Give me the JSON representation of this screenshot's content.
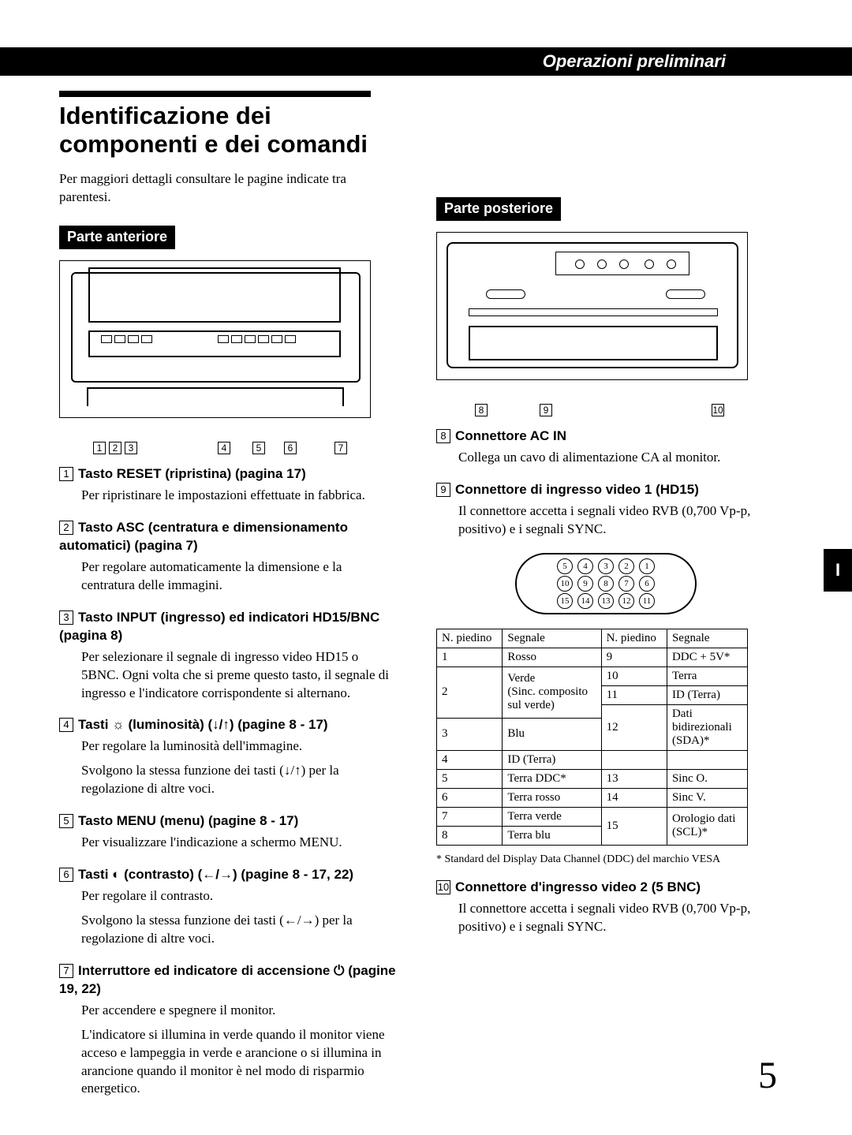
{
  "header": {
    "section": "Operazioni preliminari"
  },
  "title": "Identificazione dei componenti e dei comandi",
  "intro": "Per maggiori dettagli consultare le pagine indicate tra parentesi.",
  "front_label": "Parte anteriore",
  "back_label": "Parte posteriore",
  "side_tab": "I",
  "page_number": "5",
  "front_callouts": [
    "1",
    "2",
    "3",
    "4",
    "5",
    "6",
    "7"
  ],
  "back_callouts": [
    "8",
    "9",
    "10"
  ],
  "front_items": [
    {
      "num": "1",
      "title": "Tasto RESET (ripristina) (pagina 17)",
      "paras": [
        "Per ripristinare le impostazioni effettuate in fabbrica."
      ]
    },
    {
      "num": "2",
      "title": "Tasto ASC (centratura e dimensionamento automatici) (pagina 7)",
      "paras": [
        "Per regolare automaticamente la dimensione e la centratura delle immagini."
      ]
    },
    {
      "num": "3",
      "title": "Tasto INPUT (ingresso) ed indicatori HD15/BNC (pagina 8)",
      "paras": [
        "Per selezionare il segnale di ingresso video HD15 o 5BNC. Ogni volta che si preme questo tasto, il segnale di ingresso e l'indicatore corrispondente si alternano."
      ]
    },
    {
      "num": "4",
      "title": "Tasti ☼ (luminosità) (↓/↑) (pagine 8 - 17)",
      "paras": [
        "Per regolare la luminosità dell'immagine.",
        "Svolgono la stessa funzione dei tasti (↓/↑) per la regolazione di altre voci."
      ]
    },
    {
      "num": "5",
      "title": "Tasto MENU (menu) (pagine 8 - 17)",
      "paras": [
        "Per visualizzare l'indicazione a schermo MENU."
      ]
    },
    {
      "num": "6",
      "title": "Tasti ◐ (contrasto) (←/→) (pagine 8 - 17, 22)",
      "paras": [
        "Per regolare il contrasto.",
        "Svolgono la stessa funzione dei tasti (←/→) per la regolazione di altre voci."
      ]
    },
    {
      "num": "7",
      "title": "Interruttore ed indicatore di accensione ⏻ (pagine 19, 22)",
      "paras": [
        "Per accendere e spegnere il monitor.",
        "L'indicatore si illumina in verde quando il monitor viene acceso e lampeggia in verde e arancione o si illumina in arancione quando il monitor è nel modo di risparmio energetico."
      ]
    }
  ],
  "back_items_top": [
    {
      "num": "8",
      "title": "Connettore AC IN",
      "paras": [
        "Collega un cavo di alimentazione CA al monitor."
      ]
    },
    {
      "num": "9",
      "title": "Connettore di ingresso video 1 (HD15)",
      "paras": [
        "Il connettore accetta i segnali video RVB (0,700 Vp-p, positivo) e i segnali SYNC."
      ]
    }
  ],
  "back_items_bottom": [
    {
      "num": "10",
      "title": "Connettore d'ingresso video 2 (5 BNC)",
      "paras": [
        "Il connettore accetta i segnali video RVB (0,700 Vp-p, positivo) e i segnali SYNC."
      ]
    }
  ],
  "pin_rows": [
    [
      "5",
      "4",
      "3",
      "2",
      "1"
    ],
    [
      "10",
      "9",
      "8",
      "7",
      "6"
    ],
    [
      "15",
      "14",
      "13",
      "12",
      "11"
    ]
  ],
  "pin_table": {
    "headers": [
      "N. piedino",
      "Segnale",
      "N. piedino",
      "Segnale"
    ],
    "left": [
      {
        "n": "1",
        "s": "Rosso"
      },
      {
        "n": "2",
        "s": "Verde\n(Sinc. composito sul verde)",
        "rowspan": 3
      },
      {
        "n": "3",
        "s": "Blu"
      },
      {
        "n": "4",
        "s": "ID (Terra)"
      },
      {
        "n": "5",
        "s": "Terra DDC*"
      },
      {
        "n": "6",
        "s": "Terra rosso"
      },
      {
        "n": "7",
        "s": "Terra verde"
      },
      {
        "n": "8",
        "s": "Terra blu"
      }
    ],
    "right": [
      {
        "n": "9",
        "s": "DDC + 5V*"
      },
      {
        "n": "10",
        "s": "Terra"
      },
      {
        "n": "11",
        "s": "ID (Terra)"
      },
      {
        "n": "12",
        "s": "Dati bidirezionali (SDA)*",
        "rowspan": 2
      },
      {
        "n": "13",
        "s": "Sinc O."
      },
      {
        "n": "14",
        "s": "Sinc V."
      },
      {
        "n": "15",
        "s": "Orologio dati (SCL)*",
        "rowspan": 2
      }
    ]
  },
  "footnote": "*  Standard del Display Data Channel (DDC) del marchio VESA"
}
